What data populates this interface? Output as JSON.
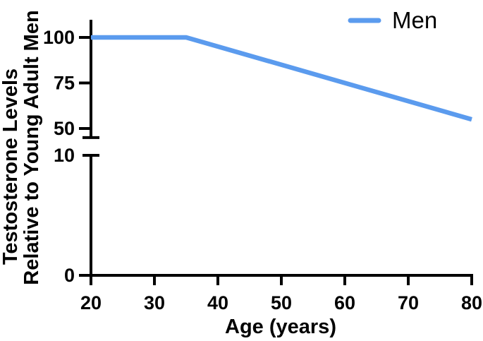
{
  "figure": {
    "background": "#ffffff",
    "axis_color": "#000000"
  },
  "chart_data": {
    "type": "line",
    "title": "",
    "xlabel": "Age (years)",
    "ylabel_lines": [
      "Testosterone Levels",
      "Relative to Young Adult Men"
    ],
    "x_ticks": [
      20,
      30,
      40,
      50,
      60,
      70,
      80
    ],
    "x_range": [
      20,
      80
    ],
    "grid": false,
    "y_axis_broken": true,
    "y_upper_ticks": [
      100,
      75,
      50
    ],
    "y_upper_range": [
      45,
      110
    ],
    "y_lower_ticks": [
      10,
      0
    ],
    "y_lower_range": [
      0,
      10
    ],
    "legend": {
      "position": "top-right",
      "entries": [
        {
          "label": "Men",
          "color": "#5b9bee"
        }
      ]
    },
    "series": [
      {
        "name": "Men",
        "color": "#5b9bee",
        "x": [
          20,
          35,
          80
        ],
        "y": [
          100,
          100,
          55
        ]
      }
    ]
  }
}
